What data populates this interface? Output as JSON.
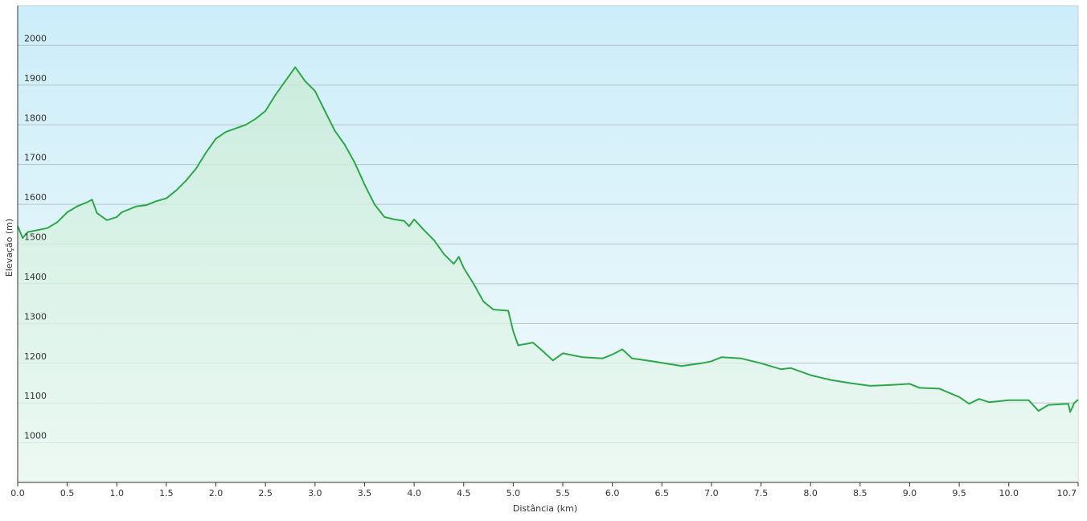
{
  "chart_data": {
    "type": "area",
    "xlabel": "Distância  (km)",
    "ylabel": "Elevação (m)",
    "x": [
      0.0,
      0.05,
      0.1,
      0.3,
      0.4,
      0.5,
      0.6,
      0.7,
      0.75,
      0.8,
      0.9,
      1.0,
      1.05,
      1.2,
      1.3,
      1.4,
      1.5,
      1.6,
      1.7,
      1.8,
      1.9,
      2.0,
      2.1,
      2.3,
      2.4,
      2.5,
      2.6,
      2.7,
      2.8,
      2.9,
      3.0,
      3.1,
      3.2,
      3.3,
      3.4,
      3.5,
      3.6,
      3.7,
      3.8,
      3.9,
      3.95,
      4.0,
      4.1,
      4.2,
      4.3,
      4.4,
      4.45,
      4.5,
      4.6,
      4.7,
      4.8,
      4.95,
      5.0,
      5.05,
      5.2,
      5.3,
      5.4,
      5.5,
      5.7,
      5.9,
      6.0,
      6.1,
      6.2,
      6.4,
      6.7,
      6.9,
      7.0,
      7.1,
      7.3,
      7.5,
      7.7,
      7.8,
      8.0,
      8.2,
      8.4,
      8.6,
      8.8,
      9.0,
      9.1,
      9.3,
      9.5,
      9.6,
      9.7,
      9.8,
      10.0,
      10.2,
      10.3,
      10.4,
      10.6,
      10.62,
      10.66,
      10.7
    ],
    "values": [
      1545,
      1515,
      1530,
      1540,
      1555,
      1580,
      1595,
      1605,
      1612,
      1578,
      1560,
      1568,
      1580,
      1595,
      1598,
      1608,
      1615,
      1635,
      1660,
      1690,
      1730,
      1765,
      1782,
      1800,
      1815,
      1835,
      1875,
      1910,
      1945,
      1910,
      1885,
      1835,
      1785,
      1750,
      1705,
      1650,
      1600,
      1568,
      1562,
      1558,
      1545,
      1562,
      1535,
      1510,
      1475,
      1450,
      1468,
      1440,
      1400,
      1355,
      1335,
      1332,
      1280,
      1245,
      1252,
      1230,
      1207,
      1225,
      1215,
      1212,
      1222,
      1235,
      1212,
      1205,
      1193,
      1200,
      1205,
      1215,
      1212,
      1200,
      1185,
      1188,
      1170,
      1158,
      1150,
      1143,
      1145,
      1148,
      1138,
      1136,
      1115,
      1098,
      1110,
      1102,
      1107,
      1107,
      1080,
      1095,
      1098,
      1077,
      1100,
      1108
    ],
    "color": "#2ea64a",
    "xlim": [
      0,
      10.7
    ],
    "xticks": [
      {
        "value": 0,
        "label": "0.0"
      },
      0.5,
      {
        "value": 1,
        "label": "1.0"
      },
      1.5,
      {
        "value": 2,
        "label": "2.0"
      },
      2.5,
      {
        "value": 3,
        "label": "3.0"
      },
      3.5,
      {
        "value": 4,
        "label": "4.0"
      },
      4.5,
      {
        "value": 5,
        "label": "5.0"
      },
      5.5,
      {
        "value": 6,
        "label": "6.0"
      },
      6.5,
      {
        "value": 7,
        "label": "7.0"
      },
      7.5,
      {
        "value": 8,
        "label": "8.0"
      },
      8.5,
      {
        "value": 9,
        "label": "9.0"
      },
      9.5,
      {
        "value": 10,
        "label": "10.0"
      },
      10.7
    ],
    "ylim": [
      900,
      2100
    ],
    "yticks": [
      1000,
      1100,
      1200,
      1300,
      1400,
      1500,
      1600,
      1700,
      1800,
      1900,
      2000
    ],
    "grid": true
  }
}
